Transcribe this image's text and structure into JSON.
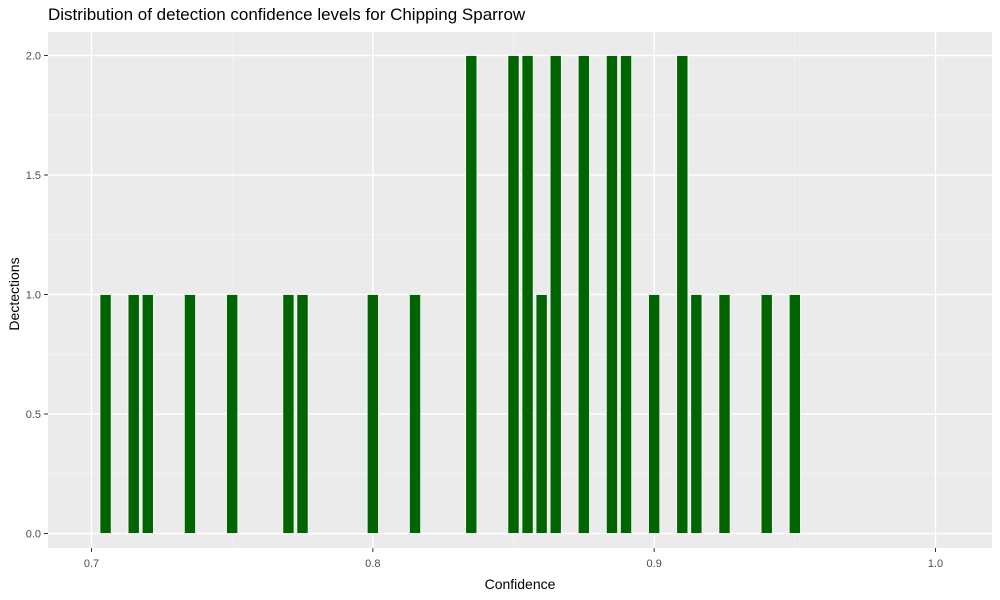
{
  "chart_data": {
    "type": "bar",
    "title": "Distribution of detection confidence levels for Chipping Sparrow",
    "xlabel": "Confidence",
    "ylabel": "Dectections",
    "xlim": [
      0.7,
      1.0
    ],
    "ylim": [
      0,
      2
    ],
    "x_ticks": [
      0.7,
      0.8,
      0.9,
      1.0
    ],
    "x_tick_labels": [
      "0.7",
      "0.8",
      "0.9",
      "1.0"
    ],
    "y_ticks": [
      0,
      0.5,
      1.0,
      1.5,
      2.0
    ],
    "y_tick_labels": [
      "0.0",
      "0.5",
      "1.0",
      "1.5",
      "2.0"
    ],
    "bar_width": 0.004,
    "grid": true,
    "legend": "none",
    "colors": {
      "bar_fill": "#006400",
      "bar_outline": "#ffffff",
      "panel_background": "#ebebeb",
      "grid_major": "#ffffff",
      "grid_minor": "#f5f5f5"
    },
    "points": [
      {
        "x": 0.705,
        "y": 1
      },
      {
        "x": 0.715,
        "y": 1
      },
      {
        "x": 0.72,
        "y": 1
      },
      {
        "x": 0.735,
        "y": 1
      },
      {
        "x": 0.75,
        "y": 1
      },
      {
        "x": 0.77,
        "y": 1
      },
      {
        "x": 0.775,
        "y": 1
      },
      {
        "x": 0.8,
        "y": 1
      },
      {
        "x": 0.815,
        "y": 1
      },
      {
        "x": 0.835,
        "y": 2
      },
      {
        "x": 0.85,
        "y": 2
      },
      {
        "x": 0.855,
        "y": 2
      },
      {
        "x": 0.86,
        "y": 1
      },
      {
        "x": 0.865,
        "y": 2
      },
      {
        "x": 0.875,
        "y": 2
      },
      {
        "x": 0.885,
        "y": 2
      },
      {
        "x": 0.89,
        "y": 2
      },
      {
        "x": 0.9,
        "y": 1
      },
      {
        "x": 0.91,
        "y": 2
      },
      {
        "x": 0.915,
        "y": 1
      },
      {
        "x": 0.925,
        "y": 1
      },
      {
        "x": 0.94,
        "y": 1
      },
      {
        "x": 0.95,
        "y": 1
      }
    ]
  }
}
